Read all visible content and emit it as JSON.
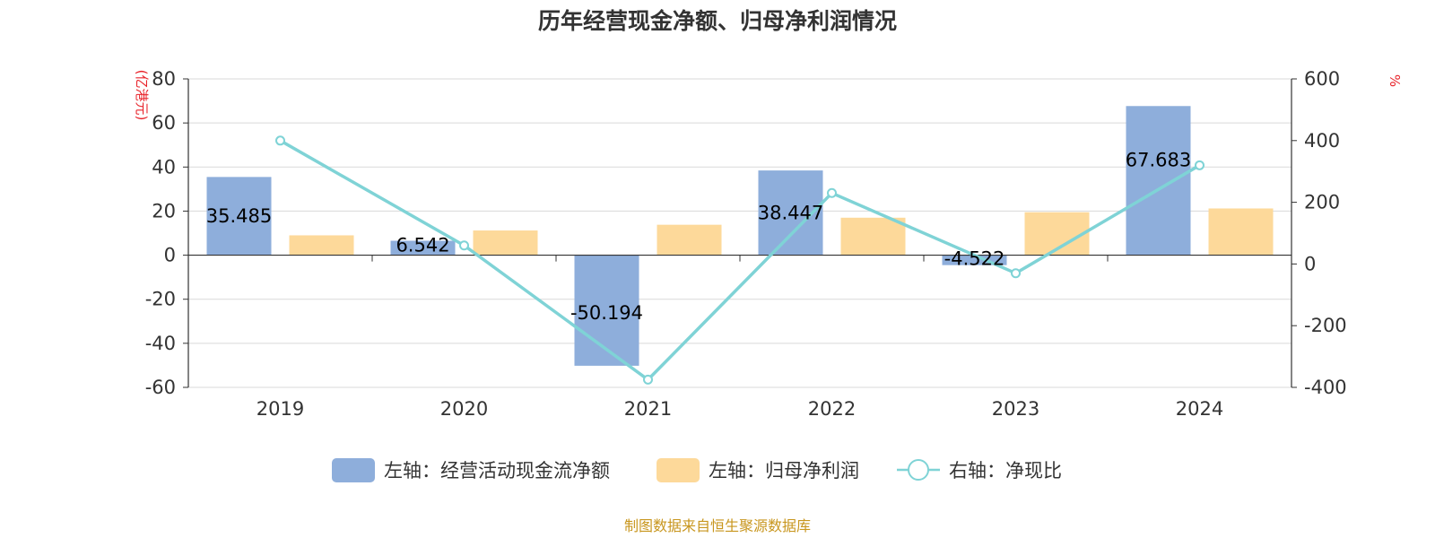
{
  "chart_data": {
    "type": "bar",
    "title": "历年经营现金净额、归母净利润情况",
    "categories": [
      "2019",
      "2020",
      "2021",
      "2022",
      "2023",
      "2024"
    ],
    "left_axis": {
      "unit_label": "(亿港元)",
      "ylim": [
        -60,
        80
      ],
      "ticks": [
        "80",
        "60",
        "40",
        "20",
        "0",
        "-20",
        "-40",
        "-60"
      ],
      "tick_values": [
        80,
        60,
        40,
        20,
        0,
        -20,
        -40,
        -60
      ]
    },
    "right_axis": {
      "unit_label": "%",
      "ylim": [
        -400,
        600
      ],
      "ticks": [
        "600",
        "400",
        "200",
        "0",
        "-200",
        "-400"
      ],
      "tick_values": [
        600,
        400,
        200,
        0,
        -200,
        -400
      ]
    },
    "grid": true,
    "legend_position": "bottom",
    "series": [
      {
        "name": "左轴：经营活动现金流净额",
        "type": "bar",
        "axis": "left",
        "color": "#8eaedb",
        "values": [
          35.485,
          6.542,
          -50.194,
          38.447,
          -4.522,
          67.683
        ],
        "data_labels": [
          "35.485",
          "6.542",
          "-50.194",
          "38.447",
          "-4.522",
          "67.683"
        ]
      },
      {
        "name": "左轴：归母净利润",
        "type": "bar",
        "axis": "left",
        "color": "#fdd99a",
        "values": [
          9.0,
          11.2,
          13.8,
          17.0,
          19.5,
          21.2
        ]
      },
      {
        "name": "右轴：净现比",
        "type": "line",
        "axis": "right",
        "color": "#7fd3d6",
        "values": [
          400,
          60,
          -375,
          230,
          -30,
          320
        ]
      }
    ],
    "source_note": "制图数据来自恒生聚源数据库"
  }
}
